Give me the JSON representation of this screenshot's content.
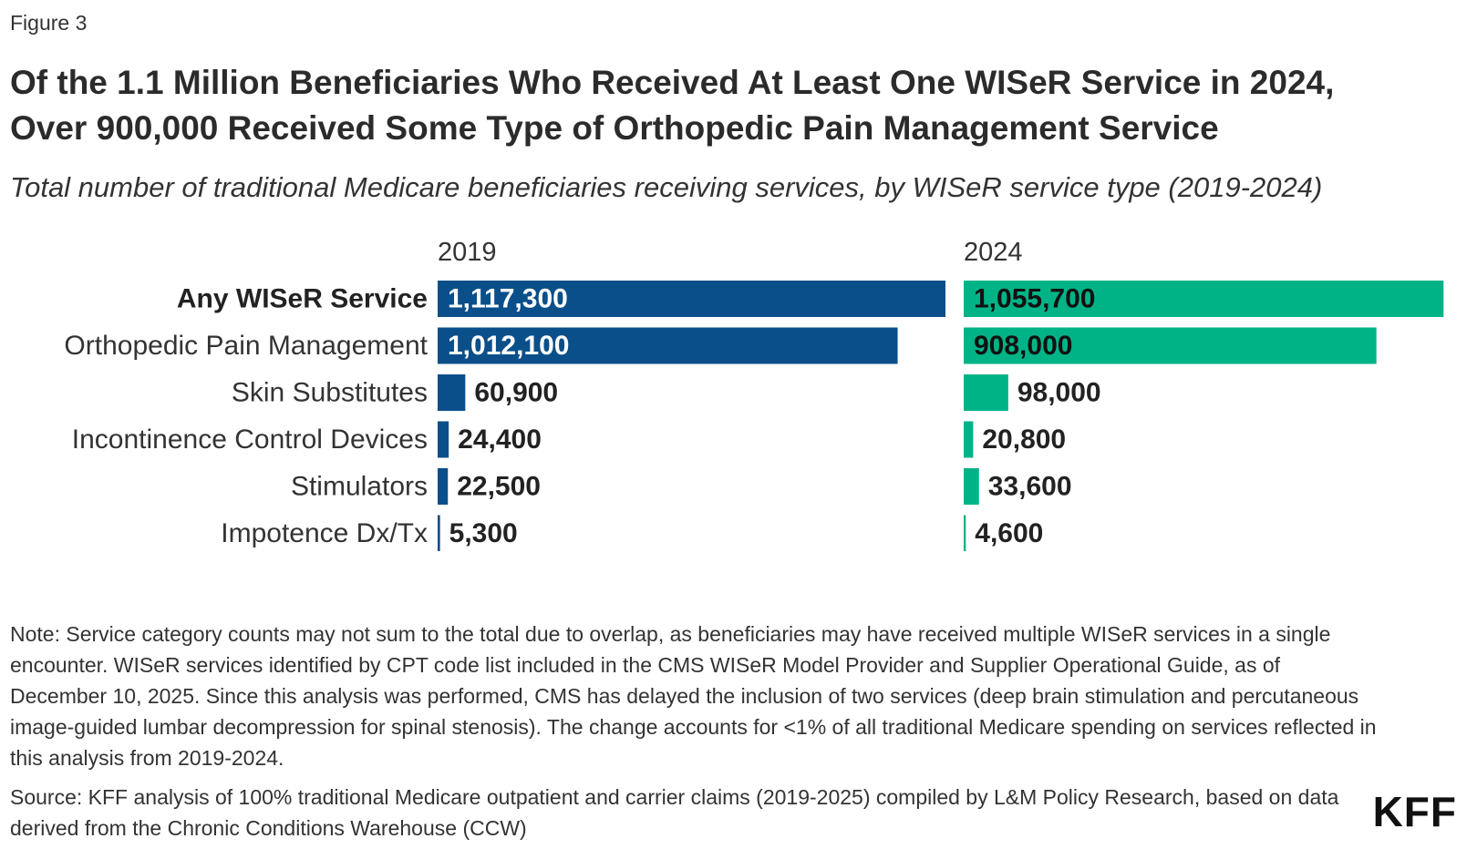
{
  "figure_label": "Figure 3",
  "title_lines": [
    "Of the 1.1 Million Beneficiaries Who Received At Least One WISeR Service in 2024,",
    "Over 900,000 Received Some Type of Orthopedic Pain Management Service"
  ],
  "subtitle": "Total number of traditional Medicare beneficiaries receiving services, by WISeR service type (2019-2024)",
  "colors": {
    "series_2019": "#0b4f8a",
    "series_2024": "#00b386",
    "label_text": "#222222",
    "category_text": "#333333"
  },
  "chart_data": {
    "type": "bar",
    "orientation": "horizontal",
    "layout": "small-multiples",
    "title": "Of the 1.1 Million Beneficiaries Who Received At Least One WISeR Service in 2024, Over 900,000 Received Some Type of Orthopedic Pain Management Service",
    "subtitle": "Total number of traditional Medicare beneficiaries receiving services, by WISeR service type (2019-2024)",
    "categories": [
      "Any WISeR Service",
      "Orthopedic Pain Management",
      "Skin Substitutes",
      "Incontinence Control Devices",
      "Stimulators",
      "Impotence Dx/Tx"
    ],
    "bold_categories": [
      "Any WISeR Service"
    ],
    "series": [
      {
        "name": "2019",
        "values": [
          1117300,
          1012100,
          60900,
          24400,
          22500,
          5300
        ],
        "labels": [
          "1,117,300",
          "1,012,100",
          "60,900",
          "24,400",
          "22,500",
          "5,300"
        ]
      },
      {
        "name": "2024",
        "values": [
          1055700,
          908000,
          98000,
          20800,
          33600,
          4600
        ],
        "labels": [
          "1,055,700",
          "908,000",
          "98,000",
          "20,800",
          "33,600",
          "4,600"
        ]
      }
    ],
    "xlim": [
      0,
      1117300
    ],
    "grid": false,
    "legend": "panel-headers"
  },
  "note": "Note: Service category counts may not sum to the total due to overlap, as beneficiaries may have received multiple WISeR services in a single encounter. WISeR services identified by CPT code list included in the CMS WISeR Model Provider and Supplier Operational Guide, as of December 10, 2025. Since this analysis was performed, CMS has delayed the inclusion of two services (deep brain stimulation and percutaneous image-guided lumbar decompression for spinal stenosis). The change accounts for <1% of all traditional Medicare spending on services reflected in this analysis from 2019-2024.",
  "source": "Source: KFF analysis of 100% traditional Medicare outpatient and carrier claims (2019-2025) compiled by L&M Policy Research, based on data derived from the Chronic Conditions Warehouse (CCW)",
  "logo": "KFF"
}
